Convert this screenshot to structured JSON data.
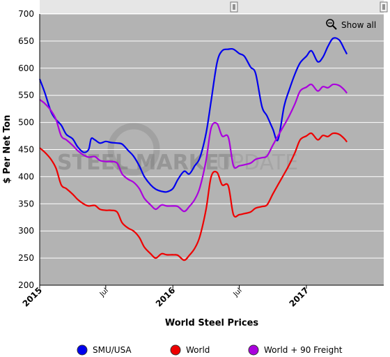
{
  "chart_data": {
    "type": "line",
    "title": "",
    "xlabel": "World Steel Prices",
    "ylabel": "$ Per Net Ton",
    "ylim": [
      200,
      700
    ],
    "yticks": [
      200,
      250,
      300,
      350,
      400,
      450,
      500,
      550,
      600,
      650,
      700
    ],
    "xlim": [
      "2015-01",
      "2017-08"
    ],
    "xticks": [
      {
        "label": "2015",
        "date": "2015-01",
        "major": true
      },
      {
        "label": "Jul",
        "date": "2015-07",
        "major": false
      },
      {
        "label": "2016",
        "date": "2016-01",
        "major": true
      },
      {
        "label": "Jul",
        "date": "2016-07",
        "major": false
      },
      {
        "label": "2017",
        "date": "2017-01",
        "major": true
      }
    ],
    "grid": true,
    "legend": "bottom",
    "watermark": {
      "bold": "STEEL MARKET",
      "light": "UPDATE"
    },
    "show_all_label": "Show all",
    "series": [
      {
        "name": "SMU/USA",
        "color": "#0000ee",
        "points": [
          [
            "2015-01-01",
            580
          ],
          [
            "2015-01-15",
            555
          ],
          [
            "2015-02-01",
            520
          ],
          [
            "2015-02-15",
            505
          ],
          [
            "2015-03-01",
            495
          ],
          [
            "2015-03-15",
            478
          ],
          [
            "2015-04-01",
            470
          ],
          [
            "2015-04-15",
            455
          ],
          [
            "2015-05-01",
            445
          ],
          [
            "2015-05-15",
            450
          ],
          [
            "2015-05-22",
            470
          ],
          [
            "2015-06-01",
            468
          ],
          [
            "2015-06-15",
            462
          ],
          [
            "2015-07-01",
            465
          ],
          [
            "2015-07-15",
            463
          ],
          [
            "2015-08-01",
            462
          ],
          [
            "2015-08-15",
            460
          ],
          [
            "2015-09-01",
            448
          ],
          [
            "2015-09-15",
            438
          ],
          [
            "2015-10-01",
            420
          ],
          [
            "2015-10-15",
            400
          ],
          [
            "2015-11-01",
            385
          ],
          [
            "2015-11-15",
            377
          ],
          [
            "2015-12-01",
            373
          ],
          [
            "2015-12-15",
            372
          ],
          [
            "2016-01-01",
            378
          ],
          [
            "2016-01-15",
            395
          ],
          [
            "2016-02-01",
            410
          ],
          [
            "2016-02-15",
            405
          ],
          [
            "2016-03-01",
            420
          ],
          [
            "2016-03-15",
            435
          ],
          [
            "2016-04-01",
            480
          ],
          [
            "2016-04-15",
            540
          ],
          [
            "2016-05-01",
            610
          ],
          [
            "2016-05-15",
            632
          ],
          [
            "2016-06-01",
            635
          ],
          [
            "2016-06-15",
            635
          ],
          [
            "2016-07-01",
            627
          ],
          [
            "2016-07-15",
            622
          ],
          [
            "2016-08-01",
            602
          ],
          [
            "2016-08-15",
            590
          ],
          [
            "2016-09-01",
            530
          ],
          [
            "2016-09-15",
            512
          ],
          [
            "2016-10-01",
            488
          ],
          [
            "2016-10-15",
            468
          ],
          [
            "2016-11-01",
            530
          ],
          [
            "2016-11-15",
            560
          ],
          [
            "2016-12-01",
            590
          ],
          [
            "2016-12-15",
            610
          ],
          [
            "2017-01-01",
            622
          ],
          [
            "2017-01-15",
            632
          ],
          [
            "2017-02-01",
            612
          ],
          [
            "2017-02-15",
            620
          ],
          [
            "2017-03-01",
            640
          ],
          [
            "2017-03-15",
            655
          ],
          [
            "2017-04-01",
            652
          ],
          [
            "2017-04-15",
            635
          ],
          [
            "2017-04-22",
            626
          ]
        ]
      },
      {
        "name": "World",
        "color": "#ee0000",
        "points": [
          [
            "2015-01-01",
            453
          ],
          [
            "2015-01-15",
            445
          ],
          [
            "2015-02-01",
            432
          ],
          [
            "2015-02-15",
            415
          ],
          [
            "2015-03-01",
            385
          ],
          [
            "2015-03-15",
            378
          ],
          [
            "2015-04-01",
            368
          ],
          [
            "2015-04-15",
            358
          ],
          [
            "2015-05-01",
            350
          ],
          [
            "2015-05-15",
            346
          ],
          [
            "2015-06-01",
            347
          ],
          [
            "2015-06-15",
            340
          ],
          [
            "2015-07-01",
            338
          ],
          [
            "2015-07-15",
            338
          ],
          [
            "2015-08-01",
            335
          ],
          [
            "2015-08-15",
            315
          ],
          [
            "2015-09-01",
            305
          ],
          [
            "2015-09-15",
            300
          ],
          [
            "2015-10-01",
            288
          ],
          [
            "2015-10-15",
            270
          ],
          [
            "2015-11-01",
            258
          ],
          [
            "2015-11-15",
            250
          ],
          [
            "2015-12-01",
            258
          ],
          [
            "2015-12-15",
            256
          ],
          [
            "2016-01-01",
            256
          ],
          [
            "2016-01-15",
            255
          ],
          [
            "2016-02-01",
            246
          ],
          [
            "2016-02-15",
            255
          ],
          [
            "2016-03-01",
            268
          ],
          [
            "2016-03-15",
            290
          ],
          [
            "2016-04-01",
            340
          ],
          [
            "2016-04-15",
            400
          ],
          [
            "2016-05-01",
            408
          ],
          [
            "2016-05-15",
            385
          ],
          [
            "2016-06-01",
            383
          ],
          [
            "2016-06-15",
            330
          ],
          [
            "2016-07-01",
            330
          ],
          [
            "2016-07-15",
            332
          ],
          [
            "2016-08-01",
            335
          ],
          [
            "2016-08-15",
            342
          ],
          [
            "2016-09-01",
            345
          ],
          [
            "2016-09-15",
            348
          ],
          [
            "2016-10-01",
            368
          ],
          [
            "2016-10-15",
            385
          ],
          [
            "2016-11-01",
            405
          ],
          [
            "2016-11-15",
            422
          ],
          [
            "2016-12-01",
            445
          ],
          [
            "2016-12-15",
            468
          ],
          [
            "2017-01-01",
            475
          ],
          [
            "2017-01-15",
            480
          ],
          [
            "2017-02-01",
            468
          ],
          [
            "2017-02-15",
            476
          ],
          [
            "2017-03-01",
            474
          ],
          [
            "2017-03-15",
            480
          ],
          [
            "2017-04-01",
            478
          ],
          [
            "2017-04-15",
            470
          ],
          [
            "2017-04-22",
            464
          ]
        ]
      },
      {
        "name": "World + 90 Freight",
        "color": "#aa00dd",
        "points": [
          [
            "2015-01-01",
            542
          ],
          [
            "2015-01-15",
            535
          ],
          [
            "2015-02-01",
            522
          ],
          [
            "2015-02-15",
            505
          ],
          [
            "2015-03-01",
            475
          ],
          [
            "2015-03-15",
            468
          ],
          [
            "2015-04-01",
            458
          ],
          [
            "2015-04-15",
            448
          ],
          [
            "2015-05-01",
            440
          ],
          [
            "2015-05-15",
            436
          ],
          [
            "2015-06-01",
            437
          ],
          [
            "2015-06-15",
            430
          ],
          [
            "2015-07-01",
            428
          ],
          [
            "2015-07-15",
            428
          ],
          [
            "2015-08-01",
            425
          ],
          [
            "2015-08-15",
            405
          ],
          [
            "2015-09-01",
            395
          ],
          [
            "2015-09-15",
            390
          ],
          [
            "2015-10-01",
            378
          ],
          [
            "2015-10-15",
            360
          ],
          [
            "2015-11-01",
            348
          ],
          [
            "2015-11-15",
            340
          ],
          [
            "2015-12-01",
            348
          ],
          [
            "2015-12-15",
            346
          ],
          [
            "2016-01-01",
            346
          ],
          [
            "2016-01-15",
            345
          ],
          [
            "2016-02-01",
            336
          ],
          [
            "2016-02-15",
            345
          ],
          [
            "2016-03-01",
            358
          ],
          [
            "2016-03-15",
            380
          ],
          [
            "2016-04-01",
            430
          ],
          [
            "2016-04-15",
            490
          ],
          [
            "2016-05-01",
            498
          ],
          [
            "2016-05-15",
            475
          ],
          [
            "2016-06-01",
            473
          ],
          [
            "2016-06-15",
            420
          ],
          [
            "2016-07-01",
            420
          ],
          [
            "2016-07-15",
            422
          ],
          [
            "2016-08-01",
            425
          ],
          [
            "2016-08-15",
            432
          ],
          [
            "2016-09-01",
            435
          ],
          [
            "2016-09-15",
            438
          ],
          [
            "2016-10-01",
            458
          ],
          [
            "2016-10-15",
            475
          ],
          [
            "2016-11-01",
            495
          ],
          [
            "2016-11-15",
            512
          ],
          [
            "2016-12-01",
            535
          ],
          [
            "2016-12-15",
            558
          ],
          [
            "2017-01-01",
            565
          ],
          [
            "2017-01-15",
            570
          ],
          [
            "2017-02-01",
            558
          ],
          [
            "2017-02-15",
            566
          ],
          [
            "2017-03-01",
            564
          ],
          [
            "2017-03-15",
            570
          ],
          [
            "2017-04-01",
            568
          ],
          [
            "2017-04-15",
            560
          ],
          [
            "2017-04-22",
            554
          ]
        ]
      }
    ]
  }
}
